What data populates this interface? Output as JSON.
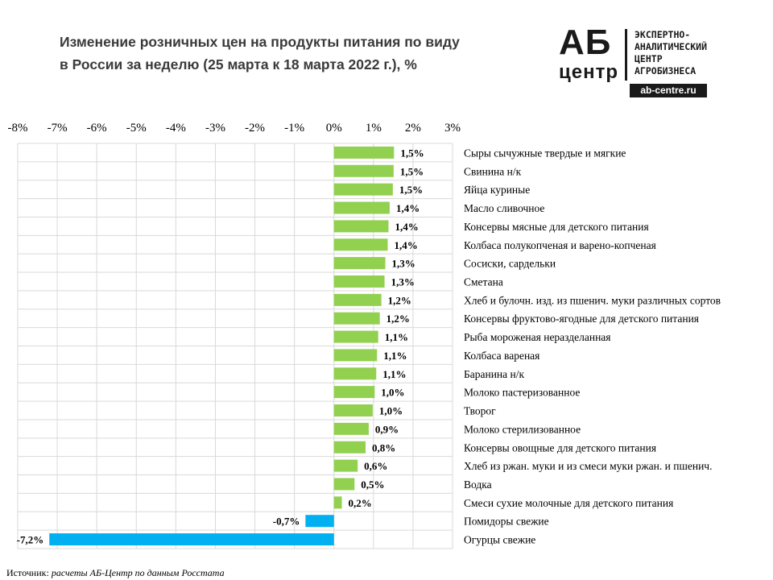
{
  "header": {
    "title_line1": "Изменение розничных цен на продукты питания по виду",
    "title_line2": "в России за неделю (25 марта к 18 марта 2022 г.), %"
  },
  "logo": {
    "ab": "АБ",
    "centr": "центр",
    "text": "ЭКСПЕРТНО-\nАНАЛИТИЧЕСКИЙ\nЦЕНТР\nАГРОБИЗНЕСА",
    "url": "ab-centre.ru"
  },
  "source": {
    "lead": "Источник: ",
    "text": "расчеты АБ-Центр по данным Росстата"
  },
  "colors": {
    "positive": "#92d050",
    "negative": "#00b0f0",
    "grid": "#d9d9d9"
  },
  "chart_data": {
    "type": "bar",
    "orientation": "horizontal",
    "xlim": [
      -8,
      3
    ],
    "tick_labels": [
      "-8%",
      "-7%",
      "-6%",
      "-5%",
      "-4%",
      "-3%",
      "-2%",
      "-1%",
      "0%",
      "1%",
      "2%",
      "3%"
    ],
    "grid": true,
    "categories": [
      "Сыры сычужные твердые и мягкие",
      "Свинина н/к",
      "Яйца куриные",
      "Масло сливочное",
      "Консервы мясные для детского питания",
      "Колбаса полукопченая и варено-копченая",
      "Сосиски, сардельки",
      "Сметана",
      "Хлеб и булочн. изд. из пшенич. муки различных сортов",
      "Консервы фруктово-ягодные для детского питания",
      "Рыба мороженая неразделанная",
      "Колбаса вареная",
      "Баранина н/к",
      "Молоко пастеризованное",
      "Творог",
      "Молоко стерилизованное",
      "Консервы овощные для детского питания",
      "Хлеб из ржан. муки и из смеси муки ржан. и пшенич.",
      "Водка",
      "Смеси сухие молочные для детского питания",
      "Помидоры свежие",
      "Огурцы свежие"
    ],
    "values": [
      1.52,
      1.51,
      1.49,
      1.41,
      1.38,
      1.36,
      1.3,
      1.28,
      1.2,
      1.16,
      1.12,
      1.09,
      1.07,
      1.03,
      0.98,
      0.88,
      0.8,
      0.6,
      0.52,
      0.2,
      -0.72,
      -7.2
    ],
    "data_labels": [
      "1,5%",
      "1,5%",
      "1,5%",
      "1,4%",
      "1,4%",
      "1,4%",
      "1,3%",
      "1,3%",
      "1,2%",
      "1,2%",
      "1,1%",
      "1,1%",
      "1,1%",
      "1,0%",
      "1,0%",
      "0,9%",
      "0,8%",
      "0,6%",
      "0,5%",
      "0,2%",
      "-0,7%",
      "-7,2%"
    ]
  }
}
